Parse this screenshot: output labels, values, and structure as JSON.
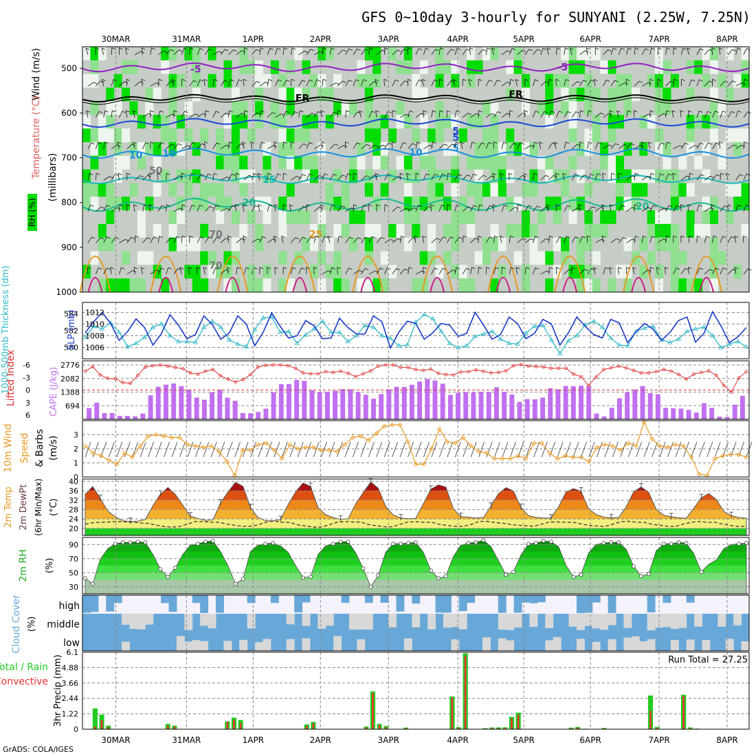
{
  "title": "GFS 0~10day 3-hourly for SUNYANI (2.25W, 7.25N)",
  "credit": "GrADS: COLA/IGES",
  "colors": {
    "rh_green": "#00dd00",
    "rh_light": "#8fe08f",
    "rh_gray": "#c6cdc6",
    "temp_purple": "#9020c0",
    "temp_blue": "#1848d8",
    "temp_sky": "#1890e0",
    "temp_cyan": "#18b8b8",
    "temp_teal": "#18b890",
    "temp_orange": "#e89820",
    "temp_magenta": "#d01888",
    "slp_line": "#1838c8",
    "thick_line": "#30b8c8",
    "lifted_line": "#e03030",
    "cape_bar": "#c070f0",
    "wind_line": "#e89820",
    "cloud_blue": "#68a8d8",
    "cloud_gray": "#d8d8d8",
    "cloud_white": "#f4f2fa",
    "precip_green": "#22cc22",
    "precip_red": "#ee3333"
  },
  "chart_data": [
    {
      "type": "heatmap",
      "name": "Vertical cross-section: RH, Temperature, Wind",
      "ylabel_parts": [
        "Wind (m/s)",
        "Temperature (°C)",
        "RH (%)",
        "(millibars)"
      ],
      "ytick_labels": [
        "500",
        "600",
        "700",
        "800",
        "900",
        "1000"
      ],
      "x_date_labels": [
        "30MAR",
        "31MAR",
        "1APR",
        "2APR",
        "3APR",
        "4APR",
        "5APR",
        "6APR",
        "7APR",
        "8APR"
      ],
      "contour_labels": [
        "-5",
        "-5",
        "FR",
        "FR",
        "5",
        "5",
        "10",
        "10",
        "15",
        "20",
        "20",
        "25",
        "5",
        "10",
        "70",
        "50",
        "70"
      ]
    },
    {
      "type": "line",
      "name": "Thickness and SLP",
      "ylabel_left": "1000-500mb Thickness (dm)",
      "ylabel_right": "SLP (mb)",
      "left_ticks": [
        "584",
        "582",
        "580"
      ],
      "right_ticks": [
        "1012",
        "1010",
        "1008",
        "1006"
      ],
      "series": [
        {
          "name": "SLP (mb)",
          "values": [
            1008.5,
            1010.4,
            1012,
            1010.1,
            1007.2,
            1008.7,
            1010.9,
            1009.4,
            1006.4,
            1008.4,
            1011.6,
            1009.8,
            1007.5,
            1008.2,
            1011.4,
            1009.9,
            1007.4,
            1008.5,
            1011.4,
            1010,
            1006.3,
            1008.6,
            1011.9,
            1009.6,
            1007.6,
            1008,
            1010.6,
            1009.7,
            1007.5,
            1007.6,
            1011,
            1009.4,
            1008.3,
            1008.3,
            1011.4,
            1010.4,
            1005.9,
            1008.6,
            1010.5,
            1010.1,
            1007.4,
            1008.5,
            1010.1,
            1009.8,
            1007.9,
            1008.4,
            1012,
            1009.8,
            1007.4,
            1008.2,
            1011.2,
            1010.1,
            1007.5,
            1008.4,
            1010.8,
            1010,
            1006.4,
            1008.5,
            1011.2,
            1009.6,
            1008.2,
            1007.6,
            1010.8,
            1010.2,
            1006.8,
            1008.7,
            1010.1,
            1009.1,
            1007.2,
            1008.6,
            1010.6,
            1011.2,
            1006.9,
            1008.4,
            1012.1,
            1009.7,
            1006.8,
            1007.8,
            1009.4
          ]
        },
        {
          "name": "1000-500mb Thickness (dm)",
          "values": [
            581.2,
            582.5,
            582.2,
            582.9,
            581.8,
            580.1,
            580.5,
            581.2,
            582.4,
            582.8,
            581.4,
            580.7,
            580.7,
            580.6,
            582.4,
            583.1,
            582.4,
            580.9,
            580.4,
            580.1,
            582.1,
            583.5,
            583.6,
            581.8,
            581.9,
            580.5,
            581.5,
            582.2,
            583.1,
            581.8,
            581.8,
            580.7,
            581.4,
            582.6,
            582.4,
            581.4,
            581.1,
            580.2,
            580.3,
            583,
            583.9,
            583.4,
            581.9,
            580.5,
            580,
            580.2,
            581.3,
            581.6,
            581.9,
            581,
            580.5,
            580.4,
            581.7,
            582.5,
            582.6,
            580.9,
            579.3,
            580.8,
            581.4,
            582.7,
            583.1,
            582.4,
            581.1,
            580.3,
            580.2,
            581.9,
            582.3,
            582.5,
            580.9,
            580.6,
            581,
            581.9,
            582.2,
            582.4,
            581.4,
            580,
            580.4,
            580.7,
            580.1
          ]
        }
      ]
    },
    {
      "type": "bar",
      "name": "Lifted Index and CAPE",
      "ylabel_left": "Lifted Index",
      "ylabel_right": "CAPE (J/kg)",
      "li_ticks": [
        "-3",
        "-6",
        "0",
        "3",
        "6"
      ],
      "cape_ticks": [
        "2776",
        "2082",
        "1388",
        "694"
      ],
      "cape_values": [
        570,
        847,
        315,
        319,
        171,
        173,
        146,
        289,
        1224,
        1661,
        1770,
        1826,
        1694,
        1514,
        1107,
        998,
        1377,
        1510,
        1101,
        942,
        319,
        310,
        371,
        542,
        1371,
        1793,
        1797,
        2012,
        1961,
        1477,
        1381,
        1408,
        1455,
        1543,
        1530,
        1389,
        1251,
        1050,
        1289,
        1529,
        1659,
        1653,
        1764,
        1928,
        2054,
        1986,
        1820,
        1245,
        1353,
        1391,
        1369,
        1407,
        1387,
        1637,
        1402,
        1264,
        879,
        1030,
        1021,
        1107,
        1585,
        1532,
        1700,
        1688,
        1716,
        1690,
        287,
        145,
        584,
        1072,
        1377,
        1520,
        1694,
        1333,
        1278,
        581,
        561,
        548,
        480,
        342,
        821,
        578,
        134,
        118,
        743,
        1194
      ],
      "lifted_index": [
        -4.5,
        -5.6,
        -3.6,
        -2.8,
        -2.7,
        -1.8,
        -1.6,
        -3.5,
        -5.5,
        -5.8,
        -6,
        -5.7,
        -5.4,
        -5.1,
        -4.1,
        -3.8,
        -4.5,
        -4.9,
        -3.4,
        -2.6,
        -1.9,
        -2.5,
        -3.7,
        -5.5,
        -5.9,
        -6,
        -6,
        -5.8,
        -5.2,
        -4.1,
        -3.9,
        -3.9,
        -4.4,
        -4.2,
        -4.5,
        -4,
        -3.2,
        -3.9,
        -4.6,
        -5.7,
        -6,
        -6,
        -5.4,
        -5.4,
        -4.9,
        -4.7,
        -5,
        -4,
        -3.7,
        -3.6,
        -4.3,
        -4.4,
        -4.8,
        -4.5,
        -4.1,
        -4.2,
        -4.6,
        -5.8,
        -6.1,
        -5.7,
        -5.6,
        -5.5,
        -5.2,
        -5.2,
        -5.2,
        -3.8,
        -3.2,
        -1.1,
        -3.1,
        -4.9,
        -5.3,
        -5.7,
        -5.3,
        -4.7,
        -4.1,
        -4.1,
        -4.4,
        -4.9,
        -4.5,
        -3.7,
        -2.6,
        -3.8,
        -4.2,
        -4.6,
        -3.5,
        -1.1,
        0.5,
        -2.9,
        -4.4
      ]
    },
    {
      "type": "line",
      "name": "10m Wind Speed & Barbs",
      "ylabel": "10m Wind Speed & Barbs (m/s)",
      "yticks": [
        "3",
        "2",
        "1",
        "0"
      ],
      "ylim": [
        0,
        4
      ],
      "values": [
        2.2,
        1.7,
        1.5,
        1.2,
        0.9,
        1.7,
        1.4,
        2.2,
        2.9,
        3,
        2.9,
        2.8,
        2.8,
        2.3,
        2.2,
        2.1,
        2.2,
        1.8,
        1.1,
        0.1,
        1.9,
        1.9,
        2.3,
        2.4,
        1.9,
        1.3,
        2.3,
        2,
        2.1,
        2.1,
        1.9,
        1.9,
        1.8,
        2.3,
        2.8,
        2.9,
        2.6,
        3.1,
        3.6,
        3.7,
        3.7,
        2.5,
        0.9,
        0.9,
        2,
        3.4,
        2.5,
        2.4,
        2.8,
        2.2,
        1.8,
        1.7,
        1.3,
        1.3,
        1.3,
        1.5,
        1.3,
        2.4,
        2.4,
        1.7,
        1.3,
        1.5,
        1.4,
        1.4,
        1.1,
        2.1,
        2.3,
        2.2,
        1.9,
        2.4,
        2.2,
        3.9,
        2.7,
        2.2,
        2.1,
        2.3,
        2.2,
        1.4,
        0.2,
        0.1,
        1.3,
        1.5,
        1.6,
        1.6,
        1.4
      ]
    },
    {
      "type": "area",
      "name": "2m Temp / 2m DewPt",
      "ylabel": "2m Temp 2m DewPt (6hr Min/Max) (°C)",
      "yticks": [
        "40",
        "36",
        "32",
        "28",
        "24",
        "20"
      ],
      "ylim": [
        17,
        40
      ],
      "temperature": [
        34.5,
        37.8,
        32.7,
        27.4,
        24.9,
        23.2,
        22.9,
        23.1,
        23.8,
        29.6,
        34.5,
        37.4,
        34.4,
        29.8,
        25.2,
        24.2,
        23.4,
        23.6,
        30.8,
        35.4,
        39.6,
        37.9,
        28.8,
        24.6,
        23.3,
        23.2,
        23.7,
        30.1,
        35.5,
        39.3,
        37.8,
        28.8,
        25.8,
        24.6,
        23.8,
        24.1,
        30.4,
        35.2,
        39.7,
        37.1,
        29.3,
        25.7,
        24.4,
        24.1,
        24.3,
        30.4,
        36.6,
        38.5,
        37.6,
        28.3,
        25,
        24.8,
        24.4,
        24.6,
        29.4,
        34.8,
        37.3,
        35.9,
        28.9,
        25.4,
        24.7,
        24.4,
        24.4,
        29.1,
        35.5,
        36.9,
        35.8,
        28.3,
        25.9,
        24.8,
        24.5,
        24.6,
        29.1,
        35.6,
        37.6,
        35.3,
        28.1,
        25.6,
        24.9,
        24.5,
        24.3,
        28.5,
        33,
        34.8,
        32.3,
        27.2,
        25.4,
        24.6,
        24.3
      ],
      "dewpoint": [
        21.8,
        22.4,
        22.6,
        22.7,
        22.9,
        22.8,
        22.6,
        22.3,
        22.1,
        21.4,
        20.8,
        20.5,
        20.8,
        21.8,
        22.9,
        22.9,
        22.6,
        22.6,
        21.8,
        21.3,
        20.9,
        20.9,
        21.5,
        22.7,
        23.1,
        22.6,
        22.5,
        21.5,
        21,
        20.5,
        20.6,
        21.5,
        22.6,
        22.9,
        22.7,
        22.7,
        21.6,
        21.1,
        20.7,
        20.7,
        21.7,
        22.7,
        22.8,
        22.6,
        22.6,
        21.7,
        21.2,
        20.9,
        20.9,
        21.6,
        22.9,
        23,
        22.5,
        22.2,
        21.7,
        21.3,
        21.1,
        20.9,
        21.8,
        22.7,
        22.7,
        22.6,
        22.6,
        21.9,
        21.2,
        21,
        20.8,
        21.7,
        22.8,
        23,
        22.6,
        22.6,
        21.7,
        21.3,
        20.9,
        20.8,
        21.8,
        22.6,
        22.9,
        22.6,
        22.6,
        21.8,
        21.2,
        20.8,
        20.9
      ]
    },
    {
      "type": "area",
      "name": "2m RH",
      "ylabel": "2m RH (%)",
      "yticks": [
        "90",
        "70",
        "50",
        "30"
      ],
      "ylim": [
        20,
        100
      ],
      "values": [
        42,
        34,
        69,
        84,
        91,
        93,
        93,
        94,
        93,
        76,
        55,
        44,
        57,
        76,
        89,
        91,
        94,
        95,
        80,
        60,
        34,
        41,
        80,
        89,
        91,
        92,
        88,
        79,
        60,
        43,
        44,
        76,
        88,
        91,
        94,
        94,
        78,
        56,
        30,
        46,
        79,
        91,
        91,
        92,
        93,
        79,
        53,
        42,
        45,
        73,
        89,
        92,
        93,
        96,
        87,
        67,
        47,
        51,
        75,
        91,
        92,
        95,
        94,
        87,
        60,
        44,
        47,
        78,
        90,
        92,
        93,
        93,
        83,
        59,
        45,
        48,
        81,
        91,
        91,
        93,
        92,
        77,
        51,
        62,
        68,
        84,
        90,
        91,
        92
      ]
    },
    {
      "type": "heatmap",
      "name": "Cloud Cover",
      "ylabel": "Cloud Cover (%)",
      "rows": [
        "high",
        "middle",
        "low"
      ]
    },
    {
      "type": "bar",
      "name": "3hr Precip",
      "ylabel": "3hr Precip (mm)",
      "legend": [
        "Total / Rain",
        "Convective"
      ],
      "yticks": [
        "6.1",
        "4.88",
        "3.66",
        "2.44",
        "1.22",
        "0"
      ],
      "run_total_label": "Run Total = 27.25",
      "total": [
        0,
        1.65,
        1.15,
        0.28,
        0,
        0,
        0,
        0,
        0,
        0,
        0,
        0,
        0.42,
        0.28,
        0,
        0,
        0,
        0,
        0,
        0,
        0,
        0.62,
        0.92,
        0.73,
        0,
        0,
        0,
        0,
        0,
        0,
        0,
        0,
        0,
        0.38,
        0.58,
        0,
        0,
        0,
        0,
        0,
        0,
        0,
        0.21,
        2.99,
        0.42,
        0.25,
        0,
        0,
        0.13,
        0,
        0,
        0,
        0,
        0,
        0,
        2.59,
        0.16,
        6.02,
        0,
        0,
        0.08,
        0.14,
        0.14,
        0.15,
        0.98,
        1.31,
        0,
        0,
        0,
        0,
        0,
        0,
        0,
        0.12,
        0.18,
        0.04,
        0,
        0,
        0.1,
        0,
        0,
        0,
        0,
        0,
        0,
        2.67,
        0.18,
        0,
        0,
        0,
        2.73,
        0.14,
        0.05,
        0,
        0,
        0,
        0.02,
        0,
        0,
        0
      ],
      "convective": [
        0,
        0.22,
        0.71,
        0.16,
        0,
        0,
        0,
        0,
        0,
        0,
        0,
        0,
        0.29,
        0.22,
        0,
        0,
        0,
        0,
        0,
        0,
        0,
        0.58,
        0.74,
        0.5,
        0,
        0,
        0,
        0,
        0,
        0,
        0,
        0,
        0,
        0.27,
        0.48,
        0,
        0,
        0,
        0,
        0,
        0,
        0,
        0.13,
        2.88,
        0.34,
        0.18,
        0,
        0,
        0.09,
        0,
        0,
        0,
        0,
        0,
        0,
        2.52,
        0.12,
        5.83,
        0,
        0,
        0.05,
        0.1,
        0.09,
        0.11,
        0.86,
        1.17,
        0,
        0,
        0,
        0,
        0,
        0,
        0,
        0.08,
        0.13,
        0.02,
        0,
        0,
        0.07,
        0,
        0,
        0,
        0,
        0,
        0,
        1.46,
        0.12,
        0,
        0,
        0,
        2.62,
        0.09,
        0.03,
        0,
        0,
        0,
        0.01,
        0,
        0,
        0
      ]
    }
  ]
}
